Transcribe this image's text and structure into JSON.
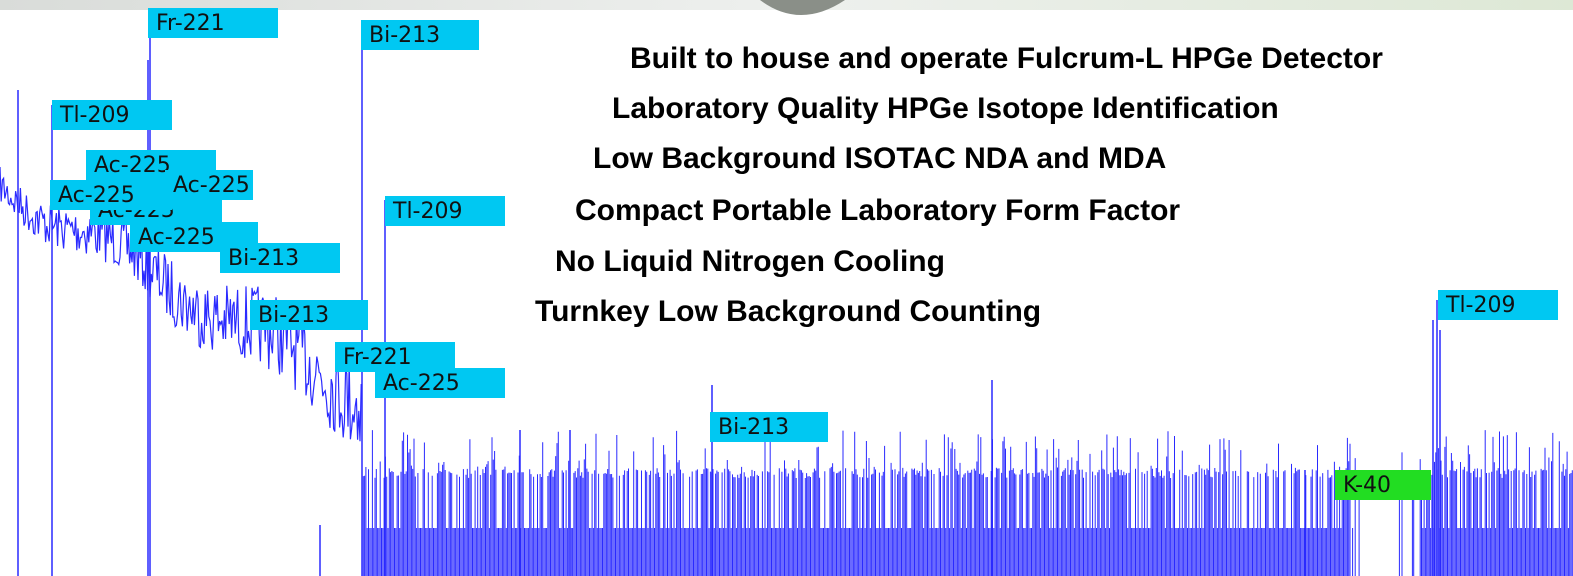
{
  "features": [
    "Built to house and operate Fulcrum-L HPGe Detector",
    "Laboratory Quality HPGe Isotope Identification",
    "Low Background ISOTAC NDA and MDA",
    "Compact Portable Laboratory Form Factor",
    "No Liquid Nitrogen Cooling",
    "Turnkey Low Background Counting"
  ],
  "peak_labels": [
    "Fr-221",
    "Bi-213",
    "Tl-209",
    "Ac-225",
    "Ac-225",
    "Ac-225",
    "Ac-225",
    "Tl-209",
    "Ac-225",
    "Bi-213",
    "Bi-213",
    "Fr-221",
    "Ac-225",
    "Bi-213",
    "K-40",
    "Tl-209"
  ]
}
